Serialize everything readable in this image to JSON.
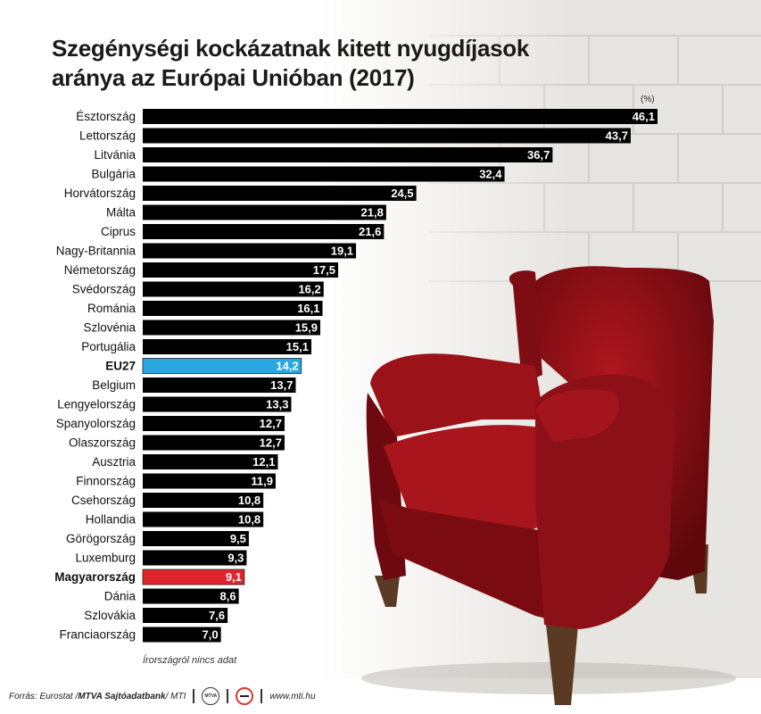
{
  "title_line1": "Szegénységi kockázatnak kitett nyugdíjasok",
  "title_line2": "aránya az Európai Unióban (2017)",
  "unit": "(%)",
  "note": "Írországról nincs adat",
  "footer": {
    "source_prefix": "Forrás: Eurostat / ",
    "source_bold": "MTVA Sajtóadatbank",
    "source_suffix": " / MTI",
    "logo_text": "MTVA",
    "website": "www.mti.hu"
  },
  "colors": {
    "bar": "#000000",
    "eu_bar": "#2aa7e1",
    "hungary_bar": "#e0242b",
    "chair": "#8e0f15"
  },
  "chart_data": {
    "type": "bar",
    "orientation": "horizontal",
    "categories": [
      "Észtország",
      "Lettország",
      "Litvánia",
      "Bulgária",
      "Horvátország",
      "Málta",
      "Ciprus",
      "Nagy-Britannia",
      "Németország",
      "Svédország",
      "Románia",
      "Szlovénia",
      "Portugália",
      "EU27",
      "Belgium",
      "Lengyelország",
      "Spanyolország",
      "Olaszország",
      "Ausztria",
      "Finnország",
      "Csehország",
      "Hollandia",
      "Görögország",
      "Luxemburg",
      "Magyarország",
      "Dánia",
      "Szlovákia",
      "Franciaország"
    ],
    "values": [
      46.1,
      43.7,
      36.7,
      32.4,
      24.5,
      21.8,
      21.6,
      19.1,
      17.5,
      16.2,
      16.1,
      15.9,
      15.1,
      14.2,
      13.7,
      13.3,
      12.7,
      12.7,
      12.1,
      11.9,
      10.8,
      10.8,
      9.5,
      9.3,
      9.1,
      8.6,
      7.6,
      7.0
    ],
    "labels": [
      "46,1",
      "43,7",
      "36,7",
      "32,4",
      "24,5",
      "21,8",
      "21,6",
      "19,1",
      "17,5",
      "16,2",
      "16,1",
      "15,9",
      "15,1",
      "14,2",
      "13,7",
      "13,3",
      "12,7",
      "12,7",
      "12,1",
      "11,9",
      "10,8",
      "10,8",
      "9,5",
      "9,3",
      "9,1",
      "8,6",
      "7,6",
      "7,0"
    ],
    "highlight": {
      "EU27": "eu",
      "Magyarország": "hungary"
    },
    "xlim": [
      0,
      46.1
    ],
    "grid": false,
    "legend": "none"
  }
}
